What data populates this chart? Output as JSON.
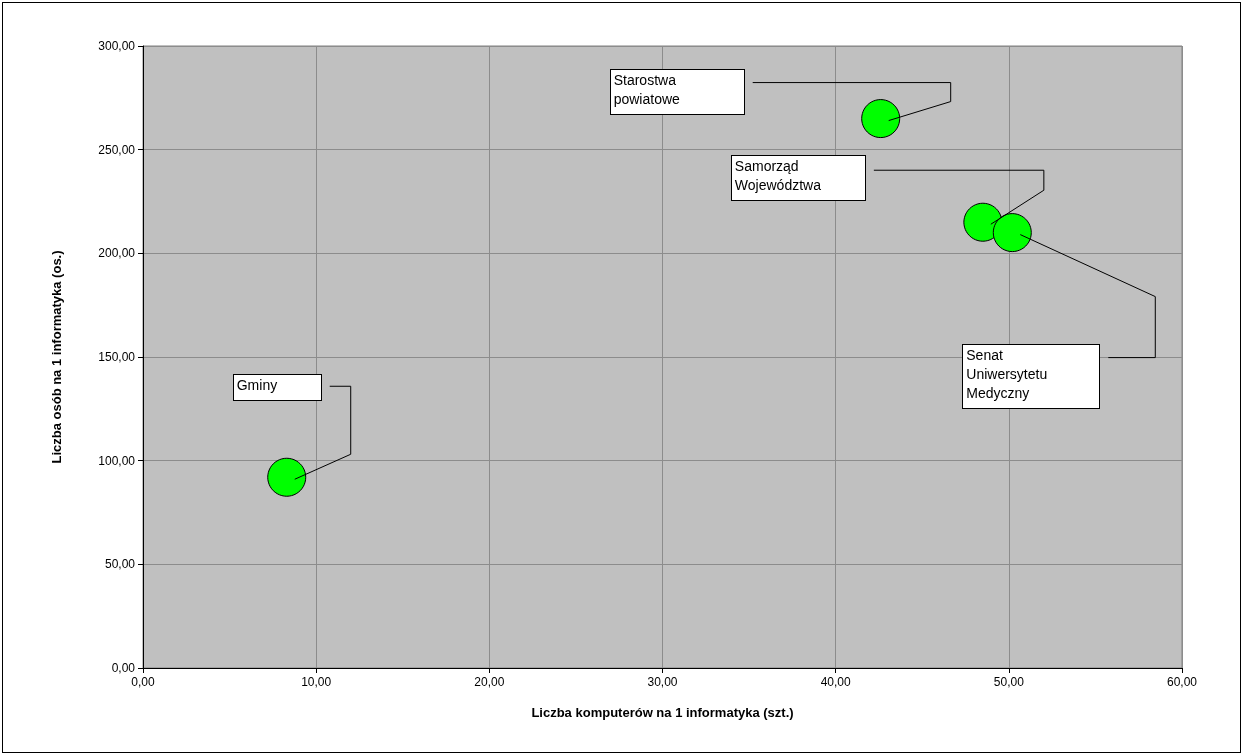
{
  "chart_data": {
    "type": "scatter",
    "xlabel": "Liczba komputerów na 1 informatyka (szt.)",
    "ylabel": "Liczba osób na 1 informatyka (os.)",
    "x": [
      8.3,
      42.6,
      48.5,
      50.2
    ],
    "series": [
      {
        "color": "#00ff00",
        "values": [
          92,
          265,
          215,
          210
        ]
      }
    ],
    "xlim": [
      0,
      60
    ],
    "xticks": [
      {
        "value": 0,
        "label": "0,00"
      },
      {
        "value": 10,
        "label": "10,00"
      },
      {
        "value": 20,
        "label": "20,00"
      },
      {
        "value": 30,
        "label": "30,00"
      },
      {
        "value": 40,
        "label": "40,00"
      },
      {
        "value": 50,
        "label": "50,00"
      },
      {
        "value": 60,
        "label": "60,00"
      }
    ],
    "ylim": [
      0,
      300
    ],
    "yticks": [
      {
        "value": 0,
        "label": "0,00"
      },
      {
        "value": 50,
        "label": "50,00"
      },
      {
        "value": 100,
        "label": "100,00"
      },
      {
        "value": 150,
        "label": "150,00"
      },
      {
        "value": 200,
        "label": "200,00"
      },
      {
        "value": 250,
        "label": "250,00"
      },
      {
        "value": 300,
        "label": "300,00"
      }
    ],
    "grid": true,
    "marker": "circle",
    "annotations": [
      "Gminy",
      "Starostwa\npowiatowe",
      "Samorząd\nWojewództwa",
      "Senat\nUniwersytetu\nMedyczny"
    ]
  }
}
